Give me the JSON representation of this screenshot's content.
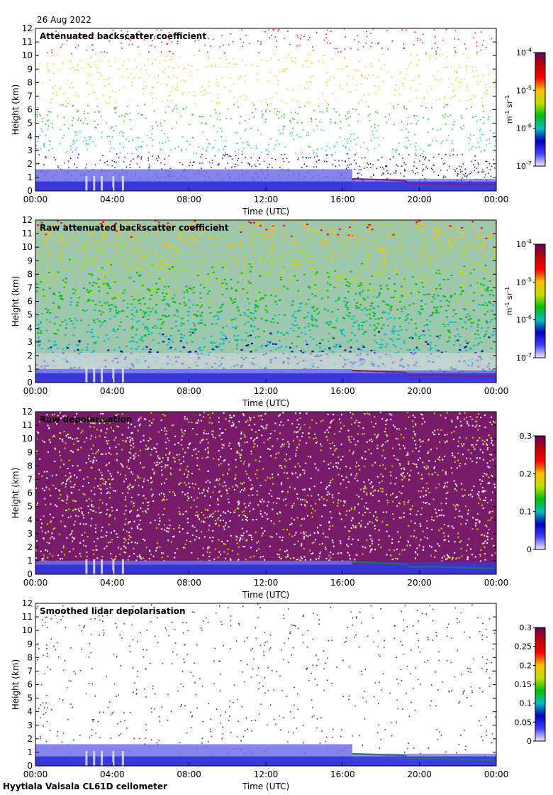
{
  "header": {
    "date": "26 Aug 2022"
  },
  "footer": {
    "caption": "Hyytiala Vaisala CL61D ceilometer"
  },
  "chart_data": [
    {
      "type": "heatmap",
      "title": "Attenuated backscatter coefficient",
      "xlabel": "Time (UTC)",
      "ylabel": "Height (km)",
      "xticks": [
        "00:00",
        "04:00",
        "08:00",
        "12:00",
        "16:00",
        "20:00",
        "00:00"
      ],
      "xlim": [
        0,
        24
      ],
      "ylim": [
        0,
        12
      ],
      "yticks": [
        0,
        1,
        2,
        3,
        4,
        5,
        6,
        7,
        8,
        9,
        10,
        11,
        12
      ],
      "colorbar": {
        "scale": "log",
        "range": [
          1e-07,
          0.0001
        ],
        "tick_base": "10",
        "tick_exps": [
          "-4",
          "-5",
          "-6",
          "-7"
        ],
        "tick_values": [
          0.0001,
          1e-05,
          1e-06,
          1e-07
        ],
        "label_unit": "m",
        "label_unit_exp": "-1",
        "label_sr": "sr",
        "label_sr_exp": "-1",
        "colors": [
          "#eeeeff",
          "#4040ff",
          "#0000c0",
          "#00c0c0",
          "#00c000",
          "#c0e000",
          "#ffc000",
          "#ff0000",
          "#c00000",
          "#600060"
        ]
      },
      "layers": {
        "noise_top_km": 12,
        "dense_top_km": 1.6,
        "cloud_base_from_h": 16.5,
        "cloud_base_km": [
          0.9,
          0.5
        ],
        "texture": "sparse"
      }
    },
    {
      "type": "heatmap",
      "title": "Raw attenuated backscatter coefficient",
      "xlabel": "Time (UTC)",
      "ylabel": "Height (km)",
      "xticks": [
        "00:00",
        "04:00",
        "08:00",
        "12:00",
        "16:00",
        "20:00",
        "00:00"
      ],
      "xlim": [
        0,
        24
      ],
      "ylim": [
        0,
        12
      ],
      "yticks": [
        0,
        1,
        2,
        3,
        4,
        5,
        6,
        7,
        8,
        9,
        10,
        11,
        12
      ],
      "colorbar": {
        "scale": "log",
        "range": [
          1e-07,
          0.0001
        ],
        "tick_base": "10",
        "tick_exps": [
          "-4",
          "-5",
          "-6",
          "-7"
        ],
        "tick_values": [
          0.0001,
          1e-05,
          1e-06,
          1e-07
        ],
        "label_unit": "m",
        "label_unit_exp": "-1",
        "label_sr": "sr",
        "label_sr_exp": "-1",
        "colors": [
          "#eeeeff",
          "#4040ff",
          "#0000c0",
          "#00c0c0",
          "#00c000",
          "#c0e000",
          "#ffc000",
          "#ff0000",
          "#c00000",
          "#600060"
        ]
      },
      "layers": {
        "noise_top_km": 12,
        "dense_top_km": 1.0,
        "cloud_base_from_h": 16.5,
        "cloud_base_km": [
          0.9,
          0.5
        ],
        "texture": "dense-noise"
      }
    },
    {
      "type": "heatmap",
      "title": "Raw depolarisation",
      "xlabel": "Time (UTC)",
      "ylabel": "Height (km)",
      "xticks": [
        "00:00",
        "04:00",
        "08:00",
        "12:00",
        "16:00",
        "20:00",
        "00:00"
      ],
      "xlim": [
        0,
        24
      ],
      "ylim": [
        0,
        12
      ],
      "yticks": [
        0,
        1,
        2,
        3,
        4,
        5,
        6,
        7,
        8,
        9,
        10,
        11,
        12
      ],
      "colorbar": {
        "scale": "linear",
        "range": [
          0,
          0.3
        ],
        "tick_labels": [
          "0.3",
          "0.2",
          "0.1",
          "0"
        ],
        "tick_values": [
          0.3,
          0.2,
          0.1,
          0
        ],
        "colors": [
          "#eeeeff",
          "#4040ff",
          "#0000c0",
          "#00c0c0",
          "#00c000",
          "#c0e000",
          "#ffc000",
          "#ff0000",
          "#c00000",
          "#600060"
        ]
      },
      "layers": {
        "noise_top_km": 12,
        "dense_top_km": 1.0,
        "cloud_base_from_h": 16.5,
        "cloud_base_km": [
          0.9,
          0.5
        ],
        "texture": "purple-noise"
      }
    },
    {
      "type": "heatmap",
      "title": "Smoothed lidar depolarisation",
      "xlabel": "Time (UTC)",
      "ylabel": "Height (km)",
      "xticks": [
        "00:00",
        "04:00",
        "08:00",
        "12:00",
        "16:00",
        "20:00",
        "00:00"
      ],
      "xlim": [
        0,
        24
      ],
      "ylim": [
        0,
        12
      ],
      "yticks": [
        0,
        1,
        2,
        3,
        4,
        5,
        6,
        7,
        8,
        9,
        10,
        11,
        12
      ],
      "colorbar": {
        "scale": "linear",
        "range": [
          0,
          0.3
        ],
        "tick_labels": [
          "0.3",
          "0.25",
          "0.2",
          "0.15",
          "0.1",
          "0.05",
          "0"
        ],
        "tick_values": [
          0.3,
          0.25,
          0.2,
          0.15,
          0.1,
          0.05,
          0
        ],
        "colors": [
          "#eeeeff",
          "#4040ff",
          "#0000c0",
          "#00c0c0",
          "#00c000",
          "#c0e000",
          "#ffc000",
          "#ff0000",
          "#c00000",
          "#600060"
        ]
      },
      "layers": {
        "noise_top_km": 12,
        "dense_top_km": 1.6,
        "cloud_base_from_h": 16.5,
        "cloud_base_km": [
          0.9,
          0.5
        ],
        "texture": "sparse-purple"
      }
    }
  ]
}
